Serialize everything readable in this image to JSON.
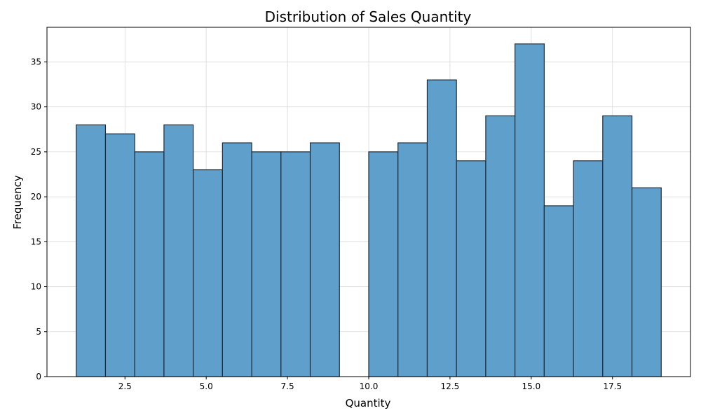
{
  "chart_data": {
    "type": "bar",
    "title": "Distribution of Sales Quantity",
    "xlabel": "Quantity",
    "ylabel": "Frequency",
    "xlim": [
      0.1,
      19.9
    ],
    "ylim": [
      0,
      38.85
    ],
    "grid": true,
    "bar_color": "#5f9fcc",
    "edge_color": "#1f2a36",
    "bins": [
      {
        "x0": 1.0,
        "x1": 1.9,
        "value": 28
      },
      {
        "x0": 1.9,
        "x1": 2.8,
        "value": 27
      },
      {
        "x0": 2.8,
        "x1": 3.7,
        "value": 25
      },
      {
        "x0": 3.7,
        "x1": 4.6,
        "value": 28
      },
      {
        "x0": 4.6,
        "x1": 5.5,
        "value": 23
      },
      {
        "x0": 5.5,
        "x1": 6.4,
        "value": 26
      },
      {
        "x0": 6.4,
        "x1": 7.3,
        "value": 25
      },
      {
        "x0": 7.3,
        "x1": 8.2,
        "value": 25
      },
      {
        "x0": 8.2,
        "x1": 9.1,
        "value": 26
      },
      {
        "x0": 9.1,
        "x1": 10.0,
        "value": 0
      },
      {
        "x0": 10.0,
        "x1": 10.9,
        "value": 25
      },
      {
        "x0": 10.9,
        "x1": 11.8,
        "value": 26
      },
      {
        "x0": 11.8,
        "x1": 12.7,
        "value": 33
      },
      {
        "x0": 12.7,
        "x1": 13.6,
        "value": 24
      },
      {
        "x0": 13.6,
        "x1": 14.5,
        "value": 29
      },
      {
        "x0": 14.5,
        "x1": 15.4,
        "value": 37
      },
      {
        "x0": 15.4,
        "x1": 16.3,
        "value": 19
      },
      {
        "x0": 16.3,
        "x1": 17.2,
        "value": 24
      },
      {
        "x0": 17.2,
        "x1": 18.1,
        "value": 29
      },
      {
        "x0": 18.1,
        "x1": 19.0,
        "value": 21
      }
    ],
    "x_ticks": [
      {
        "value": 2.5,
        "label": "2.5"
      },
      {
        "value": 5.0,
        "label": "5.0"
      },
      {
        "value": 7.5,
        "label": "7.5"
      },
      {
        "value": 10.0,
        "label": "10.0"
      },
      {
        "value": 12.5,
        "label": "12.5"
      },
      {
        "value": 15.0,
        "label": "15.0"
      },
      {
        "value": 17.5,
        "label": "17.5"
      }
    ],
    "y_ticks": [
      {
        "value": 0,
        "label": "0"
      },
      {
        "value": 5,
        "label": "5"
      },
      {
        "value": 10,
        "label": "10"
      },
      {
        "value": 15,
        "label": "15"
      },
      {
        "value": 20,
        "label": "20"
      },
      {
        "value": 25,
        "label": "25"
      },
      {
        "value": 30,
        "label": "30"
      },
      {
        "value": 35,
        "label": "35"
      }
    ]
  }
}
